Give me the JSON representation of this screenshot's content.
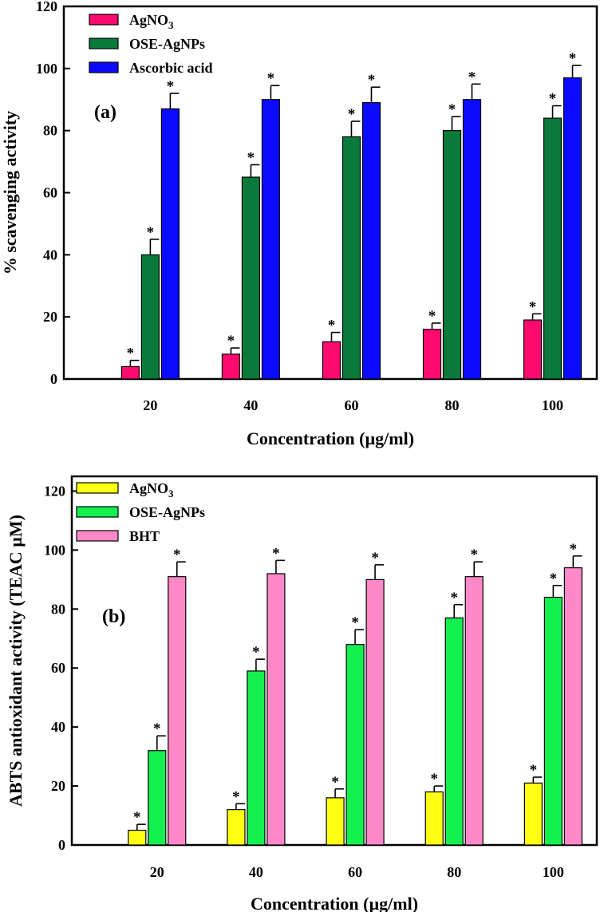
{
  "chart_data": [
    {
      "type": "bar",
      "panel_label": "(a)",
      "categories": [
        "20",
        "40",
        "60",
        "80",
        "100"
      ],
      "series": [
        {
          "name": "AgNO",
          "subscript": "3",
          "color": "#ff0a6e",
          "values": [
            4,
            8,
            12,
            16,
            19
          ],
          "errors": [
            2,
            2,
            3,
            2,
            2
          ]
        },
        {
          "name": "OSE-AgNPs",
          "subscript": "",
          "color": "#0a7a3a",
          "values": [
            40,
            65,
            78,
            80,
            84
          ],
          "errors": [
            5,
            4,
            5,
            4.5,
            4
          ]
        },
        {
          "name": "Ascorbic acid",
          "subscript": "",
          "color": "#0a0aff",
          "values": [
            87,
            90,
            89,
            90,
            97
          ],
          "errors": [
            5,
            4.5,
            5,
            5,
            4
          ]
        }
      ],
      "annotation": "*",
      "xlabel": "Concentration (µg/ml)",
      "ylabel": "% scavenging activity",
      "ylim": [
        0,
        120
      ],
      "yticks": [
        "0",
        "20",
        "40",
        "60",
        "80",
        "100",
        "120"
      ],
      "legend_position": "top-left",
      "grid": false
    },
    {
      "type": "bar",
      "panel_label": "(b)",
      "categories": [
        "20",
        "40",
        "60",
        "80",
        "100"
      ],
      "series": [
        {
          "name": "AgNO",
          "subscript": "3",
          "color": "#ffff14",
          "values": [
            5,
            12,
            16,
            18,
            21
          ],
          "errors": [
            2,
            2,
            3,
            2,
            2
          ]
        },
        {
          "name": "OSE-AgNPs",
          "subscript": "",
          "color": "#14f050",
          "values": [
            32,
            59,
            68,
            77,
            84
          ],
          "errors": [
            5,
            4,
            5,
            4.5,
            4
          ]
        },
        {
          "name": "BHT",
          "subscript": "",
          "color": "#ff88c8",
          "values": [
            91,
            92,
            90,
            91,
            94
          ],
          "errors": [
            5,
            4.5,
            5,
            5,
            4
          ]
        }
      ],
      "annotation": "*",
      "xlabel": "Concentration (µg/ml)",
      "ylabel": "ABTS antioxidant activity (TEAC µM)",
      "ylim": [
        0,
        125
      ],
      "yticks": [
        "0",
        "20",
        "40",
        "60",
        "80",
        "100",
        "120"
      ],
      "legend_position": "top-left",
      "grid": false
    }
  ]
}
